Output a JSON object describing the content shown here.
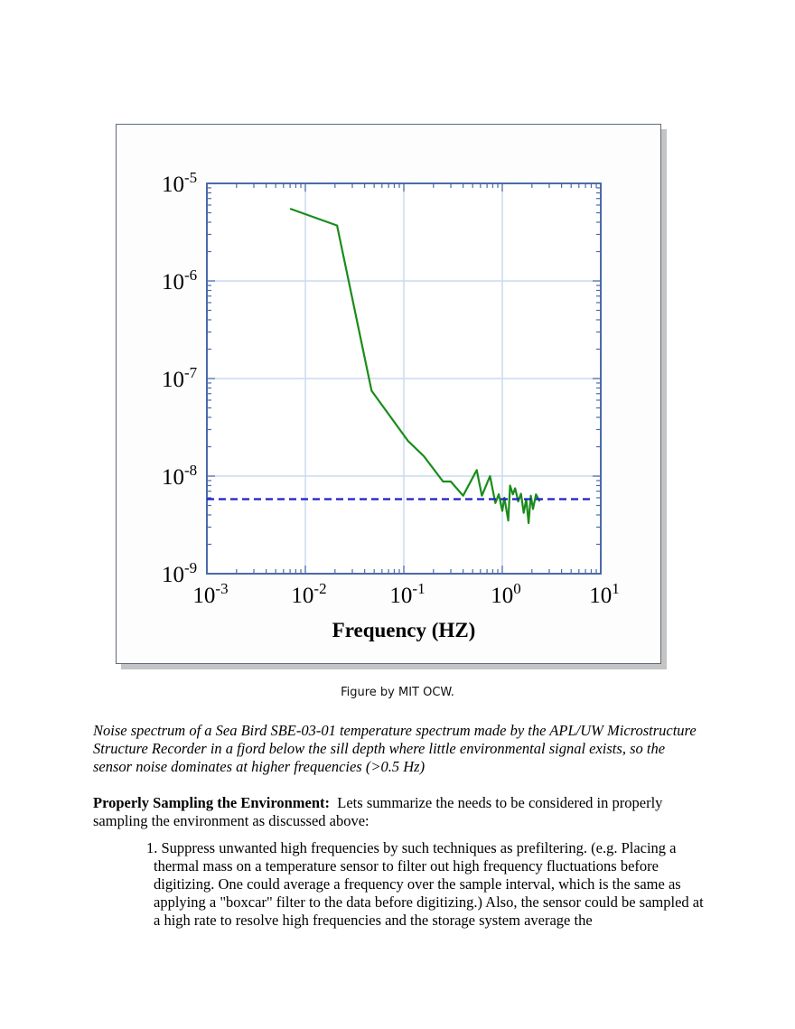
{
  "figure": {
    "credit": "Figure by MIT OCW."
  },
  "chart_data": {
    "type": "line",
    "xlabel": "Frequency (HZ)",
    "ylabel": "",
    "x_scale": "log",
    "y_scale": "log",
    "xlim": [
      0.001,
      10
    ],
    "ylim": [
      1e-09,
      1e-05
    ],
    "grid": true,
    "x_ticks": [
      {
        "base": "10",
        "exp": "-3",
        "value": 0.001
      },
      {
        "base": "10",
        "exp": "-2",
        "value": 0.01
      },
      {
        "base": "10",
        "exp": "-1",
        "value": 0.1
      },
      {
        "base": "10",
        "exp": "0",
        "value": 1
      },
      {
        "base": "10",
        "exp": "1",
        "value": 10
      }
    ],
    "y_ticks": [
      {
        "base": "10",
        "exp": "-5",
        "value": 1e-05
      },
      {
        "base": "10",
        "exp": "-6",
        "value": 1e-06
      },
      {
        "base": "10",
        "exp": "-7",
        "value": 1e-07
      },
      {
        "base": "10",
        "exp": "-8",
        "value": 1e-08
      },
      {
        "base": "10",
        "exp": "-9",
        "value": 1e-09
      }
    ],
    "series": [
      {
        "color": "#1a8c1a",
        "style": "solid",
        "x": [
          0.007,
          0.021,
          0.047,
          0.11,
          0.16,
          0.25,
          0.3,
          0.4,
          0.55,
          0.62,
          0.75,
          0.85,
          0.92,
          1.0,
          1.05,
          1.15,
          1.2,
          1.28,
          1.35,
          1.45,
          1.55,
          1.65,
          1.75,
          1.85,
          1.95,
          2.05,
          2.2,
          2.4
        ],
        "y": [
          5.5e-06,
          3.7e-06,
          7.5e-08,
          2.3e-08,
          1.6e-08,
          8.8e-09,
          8.8e-09,
          6.3e-09,
          1.15e-08,
          6.3e-09,
          1e-08,
          5.3e-09,
          6.5e-09,
          4.4e-09,
          6e-09,
          3.5e-09,
          8e-09,
          6.5e-09,
          7.5e-09,
          5.5e-09,
          6.6e-09,
          4.2e-09,
          5.8e-09,
          3.3e-09,
          6.3e-09,
          4.6e-09,
          6.5e-09,
          5.5e-09
        ]
      },
      {
        "color": "#1f1fcc",
        "style": "dashed",
        "x": [
          0.001,
          8
        ],
        "y": [
          5.8e-09,
          5.8e-09
        ]
      }
    ]
  },
  "caption": "Noise spectrum of a Sea Bird SBE-03-01 temperature spectrum made by the APL/UW Microstructure Structure Recorder in a fjord below the sill depth where little environmental signal exists, so the sensor noise dominates at higher frequencies (>0.5 Hz)",
  "section": {
    "heading": "Properly Sampling the Environment:",
    "intro": "Lets summarize the needs to be considered in properly sampling the environment as discussed above:"
  },
  "list": [
    {
      "number": "1.",
      "text": "Suppress unwanted high frequencies by such techniques as prefiltering.  (e.g. Placing a thermal mass on a temperature sensor to filter out high frequency fluctuations before digitizing.  One could average a frequency over the sample interval, which is the same as applying a \"boxcar\" filter to the data before digitizing.)  Also, the sensor could be sampled at a high rate to resolve high frequencies and the storage system average the"
    }
  ]
}
